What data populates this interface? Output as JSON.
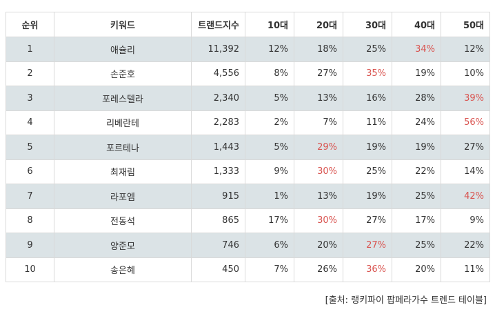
{
  "table": {
    "headers": [
      "순위",
      "키워드",
      "트랜드지수",
      "10대",
      "20대",
      "30대",
      "40대",
      "50대"
    ],
    "highlight_color": "#d9534f",
    "shaded_row_color": "#dbe3e6",
    "rows": [
      {
        "rank": "1",
        "keyword": "애슐리",
        "index": "11,392",
        "ages": [
          "12%",
          "18%",
          "25%",
          "34%",
          "12%"
        ],
        "highlight": [
          false,
          false,
          false,
          true,
          false
        ]
      },
      {
        "rank": "2",
        "keyword": "손준호",
        "index": "4,556",
        "ages": [
          "8%",
          "27%",
          "35%",
          "19%",
          "10%"
        ],
        "highlight": [
          false,
          false,
          true,
          false,
          false
        ]
      },
      {
        "rank": "3",
        "keyword": "포레스텔라",
        "index": "2,340",
        "ages": [
          "5%",
          "13%",
          "16%",
          "28%",
          "39%"
        ],
        "highlight": [
          false,
          false,
          false,
          false,
          true
        ]
      },
      {
        "rank": "4",
        "keyword": "리베란테",
        "index": "2,283",
        "ages": [
          "2%",
          "7%",
          "11%",
          "24%",
          "56%"
        ],
        "highlight": [
          false,
          false,
          false,
          false,
          true
        ]
      },
      {
        "rank": "5",
        "keyword": "포르테나",
        "index": "1,443",
        "ages": [
          "5%",
          "29%",
          "19%",
          "19%",
          "27%"
        ],
        "highlight": [
          false,
          true,
          false,
          false,
          false
        ]
      },
      {
        "rank": "6",
        "keyword": "최재림",
        "index": "1,333",
        "ages": [
          "9%",
          "30%",
          "25%",
          "22%",
          "14%"
        ],
        "highlight": [
          false,
          true,
          false,
          false,
          false
        ]
      },
      {
        "rank": "7",
        "keyword": "라포엠",
        "index": "915",
        "ages": [
          "1%",
          "13%",
          "19%",
          "25%",
          "42%"
        ],
        "highlight": [
          false,
          false,
          false,
          false,
          true
        ]
      },
      {
        "rank": "8",
        "keyword": "전동석",
        "index": "865",
        "ages": [
          "17%",
          "30%",
          "27%",
          "17%",
          "9%"
        ],
        "highlight": [
          false,
          true,
          false,
          false,
          false
        ]
      },
      {
        "rank": "9",
        "keyword": "양준모",
        "index": "746",
        "ages": [
          "6%",
          "20%",
          "27%",
          "25%",
          "22%"
        ],
        "highlight": [
          false,
          false,
          true,
          false,
          false
        ]
      },
      {
        "rank": "10",
        "keyword": "송은혜",
        "index": "450",
        "ages": [
          "7%",
          "26%",
          "36%",
          "20%",
          "11%"
        ],
        "highlight": [
          false,
          false,
          true,
          false,
          false
        ]
      }
    ]
  },
  "source": "[출처: 랭키파이 팝페라가수 트렌드 테이블]"
}
